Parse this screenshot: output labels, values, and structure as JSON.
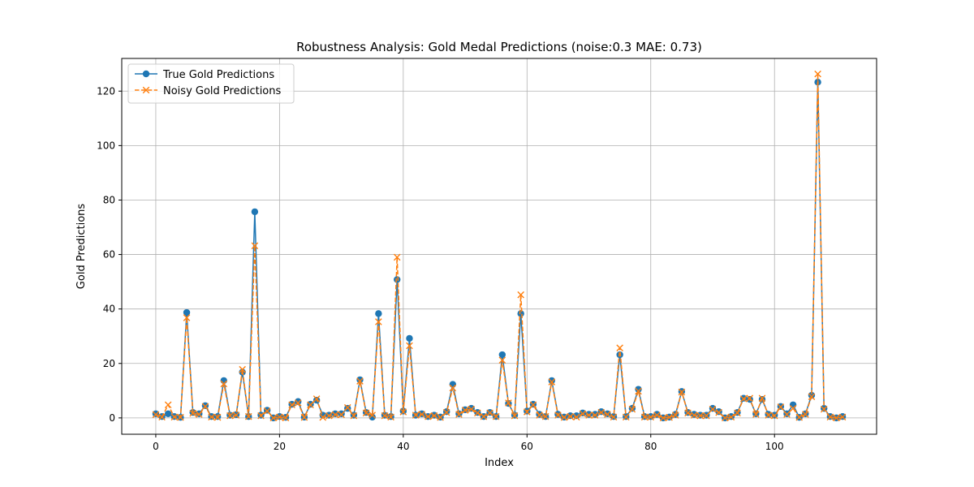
{
  "chart_data": {
    "type": "line",
    "title": "Robustness Analysis: Gold Medal Predictions (noise:0.3 MAE: 0.73)",
    "xlabel": "Index",
    "ylabel": "Gold Predictions",
    "xlim": [
      -5.5,
      116.5
    ],
    "ylim": [
      -6,
      132
    ],
    "xticks": [
      0,
      20,
      40,
      60,
      80,
      100
    ],
    "yticks": [
      0,
      20,
      40,
      60,
      80,
      100,
      120
    ],
    "grid": true,
    "legend_position": "top-left",
    "series": [
      {
        "name": "True Gold Predictions",
        "color": "#1f77b4",
        "marker": "circle",
        "line_style": "solid",
        "values": [
          1.5,
          0.5,
          1.5,
          0.5,
          0.2,
          38.7,
          2.0,
          1.5,
          4.5,
          0.5,
          0.5,
          13.7,
          1.0,
          1.2,
          16.8,
          0.5,
          75.7,
          1.0,
          2.8,
          0.0,
          0.5,
          0.2,
          5.0,
          6.0,
          0.3,
          5.0,
          6.5,
          1.0,
          1.0,
          1.5,
          1.5,
          3.5,
          1.0,
          14.0,
          2.0,
          0.3,
          38.3,
          1.0,
          0.5,
          50.8,
          2.5,
          29.2,
          1.0,
          1.5,
          0.5,
          1.0,
          0.3,
          2.3,
          12.3,
          1.5,
          3.0,
          3.5,
          2.0,
          0.5,
          2.0,
          0.5,
          23.2,
          5.3,
          1.0,
          38.3,
          2.5,
          5.0,
          1.3,
          0.5,
          13.7,
          1.3,
          0.3,
          0.8,
          0.8,
          1.8,
          1.3,
          1.3,
          2.3,
          1.5,
          0.5,
          23.2,
          0.5,
          3.5,
          10.5,
          0.5,
          0.5,
          1.3,
          0.0,
          0.3,
          1.3,
          9.7,
          2.0,
          1.3,
          1.0,
          1.0,
          3.5,
          2.3,
          0.0,
          0.5,
          2.0,
          7.2,
          6.8,
          1.5,
          6.8,
          1.3,
          1.0,
          4.2,
          1.5,
          4.8,
          0.2,
          1.5,
          8.3,
          123.3,
          3.5,
          0.5,
          0.0,
          0.5
        ]
      },
      {
        "name": "Noisy Gold Predictions",
        "color": "#ff7f0e",
        "marker": "x",
        "line_style": "dashed",
        "values": [
          1.2,
          0.3,
          4.8,
          0.3,
          0.2,
          36.8,
          1.7,
          1.3,
          4.2,
          0.3,
          0.2,
          12.5,
          0.8,
          1.0,
          17.8,
          0.5,
          63.2,
          0.8,
          2.5,
          0.0,
          0.3,
          0.0,
          4.8,
          5.5,
          0.2,
          4.8,
          7.0,
          0.2,
          0.8,
          1.2,
          1.2,
          3.8,
          0.8,
          13.5,
          1.8,
          1.0,
          35.3,
          0.8,
          0.3,
          59.0,
          2.2,
          26.5,
          1.0,
          1.3,
          0.5,
          0.8,
          0.2,
          2.0,
          11.0,
          1.3,
          2.8,
          3.2,
          1.8,
          0.5,
          1.8,
          0.5,
          21.2,
          5.5,
          0.8,
          45.2,
          2.2,
          4.8,
          1.0,
          0.5,
          13.2,
          1.0,
          0.2,
          0.5,
          0.3,
          1.5,
          1.0,
          1.0,
          2.0,
          1.3,
          0.3,
          25.7,
          0.3,
          3.2,
          9.8,
          0.3,
          0.3,
          1.0,
          0.0,
          0.2,
          1.0,
          9.5,
          1.8,
          1.0,
          0.8,
          0.8,
          3.2,
          2.0,
          0.0,
          0.3,
          1.8,
          7.0,
          7.2,
          1.3,
          7.2,
          1.0,
          0.8,
          4.0,
          1.3,
          3.5,
          0.2,
          1.3,
          7.8,
          126.3,
          3.2,
          0.3,
          0.0,
          0.3
        ]
      }
    ]
  }
}
